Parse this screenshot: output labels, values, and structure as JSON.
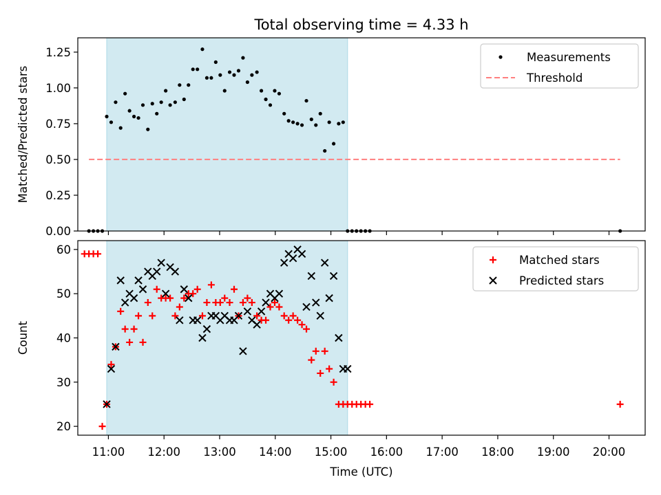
{
  "title": "Total observing time = 4.33 h",
  "colors": {
    "shade": "#add8e6",
    "measurement": "#000000",
    "threshold": "#ff7f7f",
    "matched": "#ff0000",
    "predicted": "#000000"
  },
  "chart_data": [
    {
      "type": "scatter",
      "ylabel": "Matched/Predicted stars",
      "xlim": [
        10.45,
        20.65
      ],
      "ylim": [
        0,
        1.35
      ],
      "yticks": [
        0,
        0.25,
        0.5,
        0.75,
        1.0,
        1.25
      ],
      "ytick_labels": [
        "0.00",
        "0.25",
        "0.50",
        "0.75",
        "1.00",
        "1.25"
      ],
      "xticks": [
        11,
        12,
        13,
        14,
        15,
        16,
        17,
        18,
        19,
        20
      ],
      "shaded_interval": [
        10.97,
        15.3
      ],
      "legend": {
        "position": "top-right",
        "entries": [
          "Measurements",
          "Threshold"
        ]
      },
      "series": [
        {
          "name": "Measurements",
          "marker": "dot",
          "x": [
            10.65,
            10.73,
            10.81,
            10.89,
            10.97,
            11.05,
            11.13,
            11.22,
            11.3,
            11.38,
            11.46,
            11.54,
            11.62,
            11.71,
            11.79,
            11.87,
            11.95,
            12.03,
            12.11,
            12.2,
            12.28,
            12.36,
            12.44,
            12.52,
            12.6,
            12.69,
            12.77,
            12.85,
            12.93,
            13.01,
            13.09,
            13.18,
            13.26,
            13.34,
            13.42,
            13.5,
            13.58,
            13.67,
            13.75,
            13.83,
            13.91,
            13.99,
            14.07,
            14.16,
            14.24,
            14.32,
            14.4,
            14.48,
            14.56,
            14.65,
            14.73,
            14.81,
            14.89,
            14.97,
            15.05,
            15.14,
            15.22,
            15.3,
            15.38,
            15.46,
            15.54,
            15.62,
            15.7,
            20.2
          ],
          "y": [
            0,
            0,
            0,
            0,
            0.8,
            0.76,
            0.9,
            0.72,
            0.96,
            0.84,
            0.8,
            0.79,
            0.88,
            0.71,
            0.89,
            0.82,
            0.9,
            0.98,
            0.88,
            0.9,
            1.02,
            0.92,
            1.02,
            1.13,
            1.13,
            1.27,
            1.07,
            1.07,
            1.18,
            1.09,
            0.98,
            1.11,
            1.09,
            1.12,
            1.21,
            1.04,
            1.09,
            1.11,
            0.98,
            0.92,
            0.88,
            0.98,
            0.96,
            0.82,
            0.77,
            0.76,
            0.75,
            0.74,
            0.91,
            0.78,
            0.74,
            0.82,
            0.56,
            0.76,
            0.61,
            0.75,
            0.76,
            0,
            0,
            0,
            0,
            0,
            0,
            0
          ]
        },
        {
          "name": "Threshold",
          "marker": "dashed-line",
          "x": [
            10.65,
            20.2
          ],
          "y": [
            0.5,
            0.5
          ]
        }
      ]
    },
    {
      "type": "scatter",
      "xlabel": "Time (UTC)",
      "ylabel": "Count",
      "xlim": [
        10.45,
        20.65
      ],
      "ylim": [
        18,
        62
      ],
      "yticks": [
        20,
        30,
        40,
        50,
        60
      ],
      "ytick_labels": [
        "20",
        "30",
        "40",
        "50",
        "60"
      ],
      "xticks": [
        11,
        12,
        13,
        14,
        15,
        16,
        17,
        18,
        19,
        20
      ],
      "xtick_labels": [
        "11:00",
        "12:00",
        "13:00",
        "14:00",
        "15:00",
        "16:00",
        "17:00",
        "18:00",
        "19:00",
        "20:00"
      ],
      "shaded_interval": [
        10.97,
        15.3
      ],
      "legend": {
        "position": "top-right",
        "entries": [
          "Matched stars",
          "Predicted stars"
        ]
      },
      "series": [
        {
          "name": "Matched stars",
          "marker": "plus",
          "x": [
            10.57,
            10.65,
            10.73,
            10.81,
            10.89,
            10.97,
            11.05,
            11.13,
            11.22,
            11.3,
            11.38,
            11.46,
            11.54,
            11.62,
            11.71,
            11.79,
            11.87,
            11.95,
            12.03,
            12.11,
            12.2,
            12.28,
            12.36,
            12.44,
            12.52,
            12.6,
            12.69,
            12.77,
            12.85,
            12.93,
            13.01,
            13.09,
            13.18,
            13.26,
            13.34,
            13.42,
            13.5,
            13.58,
            13.67,
            13.75,
            13.83,
            13.91,
            13.99,
            14.07,
            14.16,
            14.24,
            14.32,
            14.4,
            14.48,
            14.56,
            14.65,
            14.73,
            14.81,
            14.89,
            14.97,
            15.05,
            15.14,
            15.22,
            15.3,
            15.38,
            15.46,
            15.54,
            15.62,
            15.7,
            20.2
          ],
          "y": [
            59,
            59,
            59,
            59,
            20,
            25,
            34,
            38,
            46,
            42,
            39,
            42,
            45,
            39,
            48,
            45,
            51,
            49,
            49,
            49,
            45,
            47,
            49,
            50,
            50,
            51,
            45,
            48,
            52,
            48,
            48,
            49,
            48,
            51,
            45,
            48,
            49,
            48,
            45,
            44,
            44,
            47,
            48,
            47,
            45,
            44,
            45,
            44,
            43,
            42,
            35,
            37,
            32,
            37,
            33,
            30,
            25,
            25,
            25,
            25,
            25,
            25,
            25,
            25,
            25
          ]
        },
        {
          "name": "Predicted stars",
          "marker": "x",
          "x": [
            10.97,
            11.05,
            11.13,
            11.22,
            11.3,
            11.38,
            11.46,
            11.54,
            11.62,
            11.71,
            11.79,
            11.87,
            11.95,
            12.03,
            12.11,
            12.2,
            12.28,
            12.36,
            12.44,
            12.52,
            12.6,
            12.69,
            12.77,
            12.85,
            12.93,
            13.01,
            13.09,
            13.18,
            13.26,
            13.34,
            13.42,
            13.5,
            13.58,
            13.67,
            13.75,
            13.83,
            13.91,
            13.99,
            14.07,
            14.16,
            14.24,
            14.32,
            14.4,
            14.48,
            14.56,
            14.65,
            14.73,
            14.81,
            14.89,
            14.97,
            15.05,
            15.14,
            15.22,
            15.3
          ],
          "y": [
            25,
            33,
            38,
            53,
            48,
            50,
            49,
            53,
            51,
            55,
            54,
            55,
            57,
            50,
            56,
            55,
            44,
            51,
            49,
            44,
            44,
            40,
            42,
            45,
            45,
            44,
            45,
            44,
            44,
            45,
            37,
            46,
            44,
            43,
            46,
            48,
            50,
            49,
            50,
            57,
            59,
            58,
            60,
            59,
            47,
            54,
            48,
            45,
            57,
            49,
            54,
            40,
            33,
            33
          ]
        }
      ]
    }
  ]
}
